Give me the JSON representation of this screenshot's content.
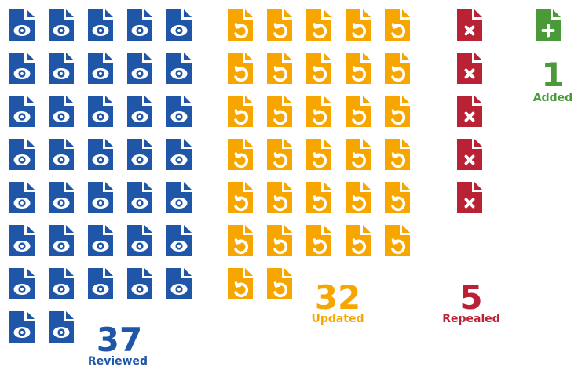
{
  "chart_data": {
    "type": "pictogram",
    "categories": [
      "Reviewed",
      "Updated",
      "Repealed",
      "Added"
    ],
    "values": [
      37,
      32,
      5,
      1
    ],
    "colors": [
      "#1f56a8",
      "#f7a600",
      "#b82234",
      "#4a9a3a"
    ],
    "icons": [
      "eye",
      "refresh",
      "cross",
      "plus"
    ]
  }
}
